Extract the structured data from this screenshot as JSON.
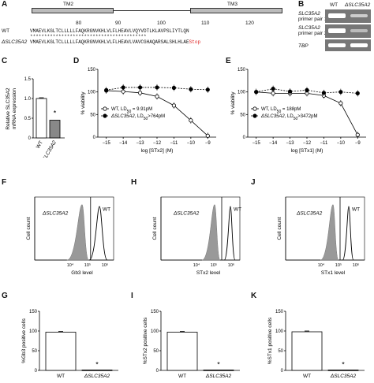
{
  "panels": {
    "A": {
      "label": "A",
      "tm2": "TM2",
      "tm3": "TM3",
      "ruler": [
        "80",
        "90",
        "100",
        "110",
        "120"
      ],
      "wt_label": "WT",
      "mut_label": "ΔSLC35A2",
      "wt_seq": "VMAEVLKGLTCLLLLLFAQKRGNVKHLVLFLHEAVLVQYVDTLKLAVPSLIYTLQN",
      "stars": "*****************************************",
      "mut_seq": "VMAEVLKGLTCLLLLLFAQKRGNVKHLVLFLHEAVLVAVCGHAQARSALSHLHLAE",
      "stop": "Stop"
    },
    "B": {
      "label": "B",
      "col_wt": "WT",
      "col_mut": "ΔSLC35A2",
      "row1": "SLC35A2",
      "row1b": "primer pair 1",
      "row2": "SLC35A2",
      "row2b": "primer pair 2",
      "row3": "TBP"
    },
    "C": {
      "label": "C",
      "ylabel1": "Relative SLC35A2",
      "ylabel2": "mRNA expression",
      "star": "*"
    },
    "D": {
      "label": "D",
      "legend_wt": "WT, LD50 = 9.91pM",
      "legend_mut": "ΔSLC35A2, LD50>764pM"
    },
    "E": {
      "label": "E",
      "legend_wt": "WT, LD50 = 188pM",
      "legend_mut": "ΔSLC35A2, LD50>3472pM"
    },
    "F": {
      "label": "F",
      "mut": "ΔSLC35A2",
      "wt": "WT",
      "ylabel": "Cell count"
    },
    "H": {
      "label": "H",
      "mut": "ΔSLC35A2",
      "wt": "WT",
      "ylabel": "Cell count"
    },
    "J": {
      "label": "J",
      "mut": "ΔSLC35A2",
      "wt": "WT",
      "ylabel": "Cell count"
    },
    "G": {
      "label": "G",
      "star": "*"
    },
    "I": {
      "label": "I",
      "star": "*"
    },
    "K": {
      "label": "K",
      "star": "*"
    }
  },
  "chart_data": [
    {
      "id": "C",
      "type": "bar",
      "categories": [
        "WT",
        "ΔSLC35A2"
      ],
      "values": [
        1.0,
        0.45
      ],
      "ylabel": "Relative SLC35A2 mRNA expression",
      "ylim": [
        0,
        1.5
      ],
      "yticks": [
        "0",
        "0.5",
        "1.0",
        "1.5"
      ]
    },
    {
      "id": "D",
      "type": "line",
      "xlabel": "log [STx2] (M)",
      "ylabel": "% viability",
      "xlim": [
        -15.5,
        -8.5
      ],
      "ylim": [
        0,
        150
      ],
      "xticks": [
        "−15",
        "−14",
        "−13",
        "−12",
        "−11",
        "−10",
        "−9"
      ],
      "yticks": [
        "0",
        "50",
        "100",
        "150"
      ],
      "series": [
        {
          "name": "WT, LD50 = 9.91pM",
          "x": [
            -15,
            -14,
            -13,
            -12,
            -11,
            -10,
            -9
          ],
          "y": [
            103,
            101,
            98,
            90,
            70,
            37,
            3
          ]
        },
        {
          "name": "ΔSLC35A2, LD50>764pM",
          "x": [
            -15,
            -14,
            -13,
            -12,
            -11,
            -10,
            -9
          ],
          "y": [
            104,
            110,
            110,
            110,
            109,
            106,
            105
          ]
        }
      ]
    },
    {
      "id": "E",
      "type": "line",
      "xlabel": "log [STx1] (M)",
      "ylabel": "% viability",
      "xlim": [
        -15.5,
        -8.5
      ],
      "ylim": [
        0,
        150
      ],
      "xticks": [
        "−15",
        "−14",
        "−13",
        "−12",
        "−11",
        "−10",
        "−9"
      ],
      "yticks": [
        "0",
        "50",
        "100",
        "150"
      ],
      "series": [
        {
          "name": "WT, LD50 = 188pM",
          "x": [
            -15,
            -14,
            -13,
            -12,
            -11,
            -10,
            -9
          ],
          "y": [
            100,
            97,
            97,
            97,
            92,
            75,
            5
          ]
        },
        {
          "name": "ΔSLC35A2, LD50>3472pM",
          "x": [
            -15,
            -14,
            -13,
            -12,
            -11,
            -10,
            -9
          ],
          "y": [
            100,
            107,
            101,
            104,
            98,
            100,
            97
          ]
        }
      ]
    },
    {
      "id": "F",
      "type": "area",
      "xlabel": "Gb3 level",
      "xticks": [
        "10⁴",
        "10⁵",
        "10⁶"
      ]
    },
    {
      "id": "H",
      "type": "area",
      "xlabel": "STx2 level",
      "xticks": [
        "10⁴",
        "10⁵",
        "10⁶"
      ]
    },
    {
      "id": "J",
      "type": "area",
      "xlabel": "STx1 level",
      "xticks": [
        "10⁴",
        "10⁵",
        "10⁶"
      ]
    },
    {
      "id": "G",
      "type": "bar",
      "categories": [
        "WT",
        "ΔSLC35A2"
      ],
      "values": [
        97,
        1
      ],
      "ylabel": "%Gb3 positive cells",
      "ylim": [
        0,
        150
      ],
      "yticks": [
        "0",
        "50",
        "100",
        "150"
      ]
    },
    {
      "id": "I",
      "type": "bar",
      "categories": [
        "WT",
        "ΔSLC35A2"
      ],
      "values": [
        97,
        1
      ],
      "ylabel": "%STx2 positive cells",
      "ylim": [
        0,
        150
      ],
      "yticks": [
        "0",
        "50",
        "100",
        "150"
      ]
    },
    {
      "id": "K",
      "type": "bar",
      "categories": [
        "WT",
        "ΔSLC35A2"
      ],
      "values": [
        98,
        1
      ],
      "ylabel": "%STx1 positive cells",
      "ylim": [
        0,
        150
      ],
      "yticks": [
        "0",
        "50",
        "100",
        "150"
      ]
    }
  ]
}
